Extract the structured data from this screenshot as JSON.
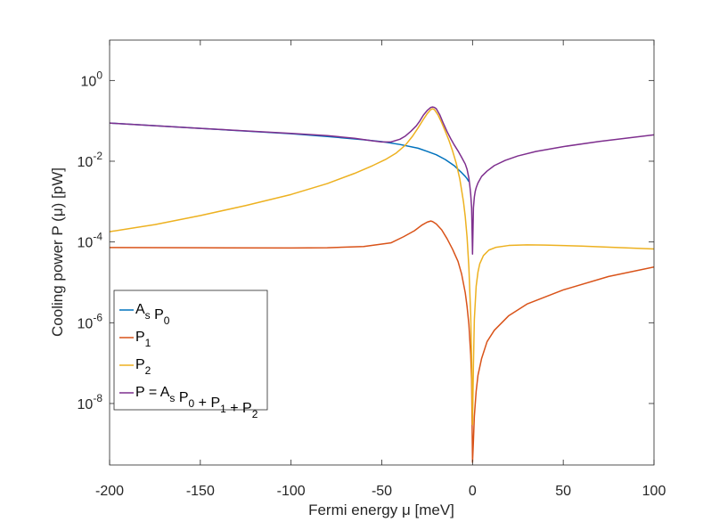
{
  "chart_data": {
    "type": "line",
    "title": "",
    "xlabel": "Fermi energy μ [meV]",
    "ylabel": "Cooling power  P (μ) [pW]",
    "xlim": [
      -200,
      100
    ],
    "ylim": [
      3e-10,
      10
    ],
    "yscale": "log",
    "x_ticks": [
      -200,
      -150,
      -100,
      -50,
      0,
      50,
      100
    ],
    "x_tick_labels": [
      "-200",
      "-150",
      "-100",
      "-50",
      "0",
      "50",
      "100"
    ],
    "y_ticks": [
      1e-08,
      1e-06,
      0.0001,
      0.01,
      1
    ],
    "y_tick_labels": [
      {
        "base": "10",
        "exp": "-8"
      },
      {
        "base": "10",
        "exp": "-6"
      },
      {
        "base": "10",
        "exp": "-4"
      },
      {
        "base": "10",
        "exp": "-2"
      },
      {
        "base": "10",
        "exp": "0"
      }
    ],
    "grid": false,
    "legend_position": "bottom-left",
    "series": [
      {
        "name": "As P0",
        "legend": [
          {
            "t": "A",
            "s": "s"
          },
          {
            "t": " P",
            "s": "0"
          }
        ],
        "color": "#0072BD",
        "x": [
          -200,
          -150,
          -100,
          -80,
          -60,
          -50,
          -40,
          -30,
          -25,
          -20,
          -15,
          -10,
          -8,
          -6,
          -4,
          -3,
          -2
        ],
        "y": [
          0.088,
          0.065,
          0.048,
          0.041,
          0.034,
          0.0305,
          0.026,
          0.021,
          0.0175,
          0.0145,
          0.011,
          0.0077,
          0.0063,
          0.0052,
          0.0042,
          0.0037,
          0.0031
        ]
      },
      {
        "name": "P1",
        "legend": [
          {
            "t": "P",
            "s": "1"
          }
        ],
        "color": "#D95319",
        "x": [
          -200,
          -150,
          -100,
          -80,
          -60,
          -45,
          -38,
          -32,
          -28,
          -25,
          -23,
          -22,
          -20,
          -17,
          -14,
          -11,
          -8,
          -6,
          -4,
          -3,
          -2,
          -1,
          -0.5,
          0,
          0.5,
          1,
          2,
          3,
          5,
          8,
          12,
          20,
          30,
          50,
          75,
          100
        ],
        "y": [
          7.3e-05,
          7.2e-05,
          7.1e-05,
          7.2e-05,
          7.7e-05,
          9.5e-05,
          0.000135,
          0.00019,
          0.00026,
          0.00031,
          0.00033,
          0.00032,
          0.00028,
          0.0002,
          0.00012,
          6.6e-05,
          3.3e-05,
          1.6e-05,
          5.5e-06,
          2.5e-06,
          9e-07,
          1.6e-07,
          3.8e-08,
          3.5e-10,
          1.2e-09,
          4.8e-09,
          2e-08,
          5e-08,
          1.3e-07,
          3.4e-07,
          6.5e-07,
          1.5e-06,
          2.9e-06,
          6.5e-06,
          1.4e-05,
          2.4e-05
        ]
      },
      {
        "name": "P2",
        "legend": [
          {
            "t": "P",
            "s": "2"
          }
        ],
        "color": "#EDB120",
        "x": [
          -200,
          -175,
          -150,
          -125,
          -100,
          -80,
          -65,
          -55,
          -48,
          -42,
          -37,
          -33,
          -30,
          -27,
          -25,
          -23,
          -22,
          -21,
          -19,
          -17,
          -15,
          -13,
          -11,
          -9,
          -7,
          -5,
          -4,
          -3,
          -2,
          -1,
          -0.5,
          0,
          0.5,
          1,
          2,
          3,
          4,
          6,
          9,
          13,
          20,
          30,
          40,
          60,
          80,
          100
        ],
        "y": [
          0.00018,
          0.00027,
          0.00045,
          0.0008,
          0.0015,
          0.0028,
          0.005,
          0.0078,
          0.011,
          0.016,
          0.025,
          0.042,
          0.067,
          0.11,
          0.15,
          0.19,
          0.2,
          0.19,
          0.14,
          0.09,
          0.055,
          0.033,
          0.018,
          0.009,
          0.0036,
          0.001,
          0.00042,
          0.00013,
          2.3e-05,
          1.5e-06,
          1.2e-07,
          3e-09,
          9e-08,
          1.2e-06,
          8e-06,
          1.8e-05,
          2.9e-05,
          4.6e-05,
          6.3e-05,
          7.4e-05,
          8.2e-05,
          8.5e-05,
          8.4e-05,
          7.9e-05,
          7.3e-05,
          6.7e-05
        ]
      },
      {
        "name": "P = As P0 + P1 + P2",
        "legend": [
          {
            "t": "P = A",
            "s": "s"
          },
          {
            "t": " P",
            "s": "0"
          },
          {
            "t": " + P",
            "s": "1"
          },
          {
            "t": " + P",
            "s": "2"
          }
        ],
        "color": "#7E2F8E",
        "x": [
          -200,
          -150,
          -100,
          -80,
          -65,
          -55,
          -50,
          -45,
          -40,
          -37,
          -34,
          -31,
          -29,
          -27,
          -25,
          -23,
          -22,
          -21,
          -20,
          -18,
          -16,
          -14,
          -12,
          -10,
          -8,
          -6,
          -4,
          -3,
          -2,
          -1.5,
          -1,
          -0.5,
          0,
          0.5,
          1,
          1.5,
          2,
          3,
          5,
          8,
          12,
          18,
          25,
          35,
          50,
          70,
          100
        ],
        "y": [
          0.088,
          0.065,
          0.049,
          0.043,
          0.037,
          0.032,
          0.03,
          0.03,
          0.035,
          0.042,
          0.055,
          0.075,
          0.1,
          0.14,
          0.18,
          0.215,
          0.22,
          0.215,
          0.2,
          0.14,
          0.085,
          0.054,
          0.036,
          0.025,
          0.018,
          0.0125,
          0.0085,
          0.0063,
          0.0038,
          0.0025,
          0.0015,
          0.0007,
          5e-05,
          0.0007,
          0.0013,
          0.0018,
          0.0022,
          0.0029,
          0.0042,
          0.0057,
          0.0078,
          0.0105,
          0.0135,
          0.0175,
          0.023,
          0.031,
          0.045
        ]
      }
    ]
  }
}
